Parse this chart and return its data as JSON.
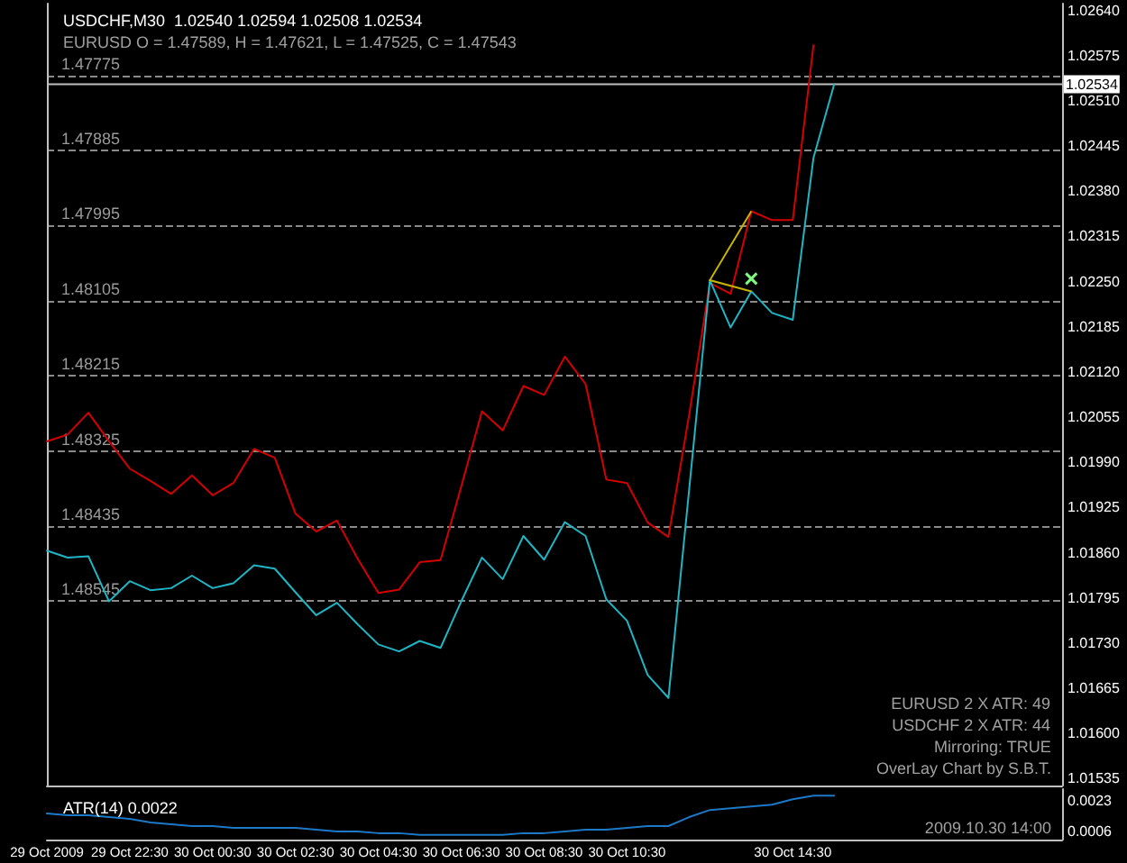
{
  "chart_data": [
    {
      "type": "line",
      "title": "USDCHF,M30  1.02540 1.02594 1.02508 1.02534",
      "subtitle": "EURUSD O = 1.47589, H = 1.47621, L = 1.47525, C = 1.47543",
      "categories": [
        null,
        null,
        null,
        null,
        null,
        null,
        null,
        null,
        null,
        null,
        null,
        null,
        null,
        null,
        null,
        null,
        null,
        null,
        null,
        null,
        null,
        null,
        null,
        null,
        null,
        null,
        null,
        null,
        null,
        null,
        null,
        null,
        null,
        null,
        null,
        null,
        null,
        null,
        null,
        null,
        null,
        null,
        null,
        null,
        null,
        null,
        null,
        null,
        null,
        null
      ],
      "series": [
        {
          "color": "#d40000",
          "values": [
            1.48311,
            1.48301,
            1.48269,
            1.48311,
            1.48351,
            1.48369,
            1.48388,
            1.48361,
            1.4839,
            1.48372,
            1.48322,
            1.48335,
            1.48417,
            1.48443,
            1.48427,
            1.48483,
            1.48533,
            1.48528,
            1.48488,
            1.48485,
            1.48377,
            1.48267,
            1.48295,
            1.4823,
            1.48243,
            1.48187,
            1.48227,
            1.48367,
            1.48372,
            1.4843,
            1.48451,
            1.48272,
            1.48079,
            1.48095,
            1.47974,
            1.47987,
            1.47987,
            1.47731,
            null,
            null,
            null,
            null,
            null,
            null,
            null,
            null,
            null,
            null,
            null,
            null
          ]
        },
        {
          "color": "#1fb5c4",
          "axis": "y2",
          "values": [
            1.01863,
            1.01853,
            1.01855,
            1.0179,
            1.01819,
            1.01806,
            1.01809,
            1.01827,
            1.01809,
            1.01816,
            1.01842,
            1.01837,
            1.01803,
            1.0177,
            1.01788,
            1.01757,
            1.01728,
            1.01718,
            1.01733,
            1.01723,
            1.0179,
            1.01853,
            1.01822,
            1.01884,
            1.0185,
            1.01904,
            1.01884,
            1.01793,
            1.01762,
            1.01684,
            1.01651,
            1.01951,
            1.02252,
            1.02184,
            1.02236,
            1.02205,
            1.02195,
            1.02428,
            1.02534,
            null,
            null,
            null,
            null,
            null,
            null,
            null,
            null,
            null,
            null,
            null
          ]
        }
      ],
      "ylim": [
        1.48815,
        1.4767
      ],
      "yticks": [
        1.47775,
        1.47885,
        1.47995,
        1.48105,
        1.48215,
        1.48325,
        1.48435,
        1.48545
      ],
      "y2lim": [
        1.01525,
        1.0265
      ],
      "y2ticks": [
        1.01535,
        {
          "value": 1.016,
          "label": "1.01600"
        },
        1.01665,
        {
          "value": 1.0173,
          "label": "1.01730"
        },
        1.01795,
        {
          "value": 1.0186,
          "label": "1.01860"
        },
        1.01925,
        {
          "value": 1.0199,
          "label": "1.01990"
        },
        1.02055,
        {
          "value": 1.0212,
          "label": "1.02120"
        },
        1.02185,
        {
          "value": 1.0225,
          "label": "1.02250"
        },
        1.02315,
        {
          "value": 1.0238,
          "label": "1.02380"
        },
        1.02445,
        {
          "value": 1.0251,
          "label": "1.02510"
        },
        1.02575,
        {
          "value": 1.0264,
          "label": "1.02640"
        }
      ],
      "grid": "y",
      "tick_labels": "y",
      "marker": "none",
      "line_style": "solid",
      "ref_lines": [
        {
          "axis": "y2",
          "value": 1.02534,
          "label": "1.02534",
          "color": "#c0c0c0",
          "line_style": "solid"
        }
      ],
      "annotations": [
        "EURUSD 2 X ATR: 49",
        "USDCHF 2 X ATR: 44",
        "Mirroring: TRUE",
        "OverLay Chart by S.B.T."
      ]
    },
    {
      "type": "line",
      "title": "ATR(14) 0.0022",
      "categories": [
        "29 Oct 2009",
        null,
        null,
        null,
        "29 Oct 22:30",
        null,
        null,
        null,
        "30 Oct 00:30",
        null,
        null,
        null,
        "30 Oct 02:30",
        null,
        null,
        null,
        "30 Oct 04:30",
        null,
        null,
        null,
        "30 Oct 06:30",
        null,
        null,
        null,
        "30 Oct 08:30",
        null,
        null,
        null,
        "30 Oct 10:30",
        null,
        null,
        null,
        null,
        null,
        null,
        null,
        "30 Oct 14:30",
        null,
        null,
        null,
        null,
        null,
        null,
        null,
        null,
        null,
        null,
        null,
        null,
        null
      ],
      "values": [
        0.0016,
        0.0015,
        0.0015,
        0.0014,
        0.0013,
        0.0011,
        0.001,
        0.0009,
        0.0009,
        0.0008,
        0.0008,
        0.0008,
        0.0008,
        0.0007,
        0.0006,
        0.0006,
        0.0005,
        0.0005,
        0.0004,
        0.0004,
        0.0004,
        0.0004,
        0.0004,
        0.0005,
        0.0005,
        0.0006,
        0.0007,
        0.0007,
        0.0008,
        0.0009,
        0.0009,
        0.0014,
        0.0018,
        0.0019,
        0.002,
        0.0021,
        0.0024,
        0.0026,
        0.0026,
        null,
        null,
        null,
        null,
        null,
        null,
        null,
        null,
        null,
        null,
        null
      ],
      "color": "#1e78c8",
      "ylim": [
        0.00014,
        0.00297
      ],
      "yticks": [
        0.0006,
        0.0023
      ],
      "grid": false,
      "marker": "none",
      "line_style": "solid",
      "annotations": [
        "2009.10.30 14:00"
      ]
    }
  ]
}
